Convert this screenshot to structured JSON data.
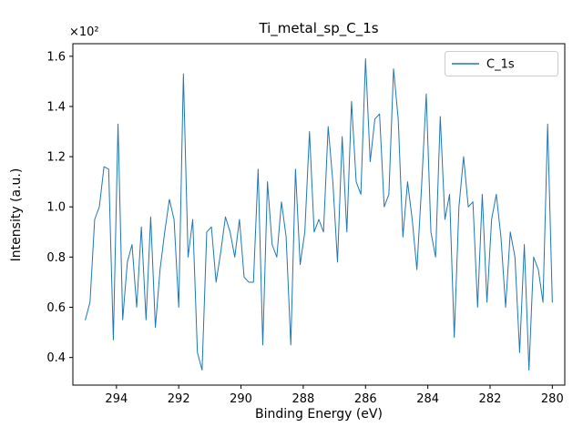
{
  "chart_data": {
    "type": "line",
    "title": "Ti_metal_sp_C_1s",
    "xlabel": "Binding Energy (eV)",
    "ylabel": "Intensity (a.u.)",
    "y_offset_text": "×10²",
    "x_axis_reversed": true,
    "grid": false,
    "xlim": [
      295.4,
      279.6
    ],
    "ylim": [
      0.29,
      1.65
    ],
    "xticks": {
      "values": [
        294,
        292,
        290,
        288,
        286,
        284,
        282,
        280
      ],
      "labels": [
        "294",
        "292",
        "290",
        "288",
        "286",
        "284",
        "282",
        "280"
      ]
    },
    "yticks": {
      "values": [
        0.4,
        0.6,
        0.8,
        1.0,
        1.2,
        1.4,
        1.6
      ],
      "labels": [
        "0.4",
        "0.6",
        "0.8",
        "1.0",
        "1.2",
        "1.4",
        "1.6"
      ]
    },
    "legend": {
      "position": "upper right"
    },
    "x": [
      295.0,
      294.85,
      294.7,
      294.55,
      294.4,
      294.25,
      294.1,
      293.95,
      293.8,
      293.65,
      293.5,
      293.35,
      293.2,
      293.05,
      292.9,
      292.75,
      292.6,
      292.45,
      292.3,
      292.15,
      292.0,
      291.85,
      291.7,
      291.55,
      291.4,
      291.25,
      291.1,
      290.95,
      290.8,
      290.65,
      290.5,
      290.35,
      290.2,
      290.05,
      289.9,
      289.75,
      289.6,
      289.45,
      289.3,
      289.15,
      289.0,
      288.85,
      288.7,
      288.55,
      288.4,
      288.25,
      288.1,
      287.95,
      287.8,
      287.65,
      287.5,
      287.35,
      287.2,
      287.05,
      286.9,
      286.75,
      286.6,
      286.45,
      286.3,
      286.15,
      286.0,
      285.85,
      285.7,
      285.55,
      285.4,
      285.25,
      285.1,
      284.95,
      284.8,
      284.65,
      284.5,
      284.35,
      284.2,
      284.05,
      283.9,
      283.75,
      283.6,
      283.45,
      283.3,
      283.15,
      283.0,
      282.85,
      282.7,
      282.55,
      282.4,
      282.25,
      282.1,
      281.95,
      281.8,
      281.65,
      281.5,
      281.35,
      281.2,
      281.05,
      280.9,
      280.75,
      280.6,
      280.45,
      280.3,
      280.15,
      280.0
    ],
    "series": [
      {
        "name": "C_1s",
        "color": "#1f77b4",
        "values": [
          0.55,
          0.62,
          0.95,
          1.0,
          1.16,
          1.15,
          0.47,
          1.33,
          0.55,
          0.78,
          0.85,
          0.6,
          0.92,
          0.55,
          0.96,
          0.52,
          0.75,
          0.9,
          1.03,
          0.95,
          0.6,
          1.53,
          0.8,
          0.95,
          0.42,
          0.35,
          0.9,
          0.92,
          0.7,
          0.82,
          0.96,
          0.9,
          0.8,
          0.95,
          0.72,
          0.7,
          0.7,
          1.15,
          0.45,
          1.1,
          0.85,
          0.8,
          1.02,
          0.88,
          0.45,
          1.15,
          0.77,
          0.9,
          1.3,
          0.9,
          0.95,
          0.9,
          1.32,
          1.1,
          0.78,
          1.28,
          0.9,
          1.42,
          1.1,
          1.05,
          1.59,
          1.18,
          1.35,
          1.37,
          1.0,
          1.05,
          1.55,
          1.35,
          0.88,
          1.1,
          0.95,
          0.75,
          1.08,
          1.45,
          0.9,
          0.8,
          1.36,
          0.95,
          1.05,
          0.48,
          1.0,
          1.2,
          1.0,
          1.02,
          0.6,
          1.05,
          0.62,
          0.95,
          1.05,
          0.88,
          0.6,
          0.9,
          0.8,
          0.42,
          0.85,
          0.35,
          0.8,
          0.75,
          0.62,
          1.33,
          0.62
        ]
      }
    ]
  }
}
